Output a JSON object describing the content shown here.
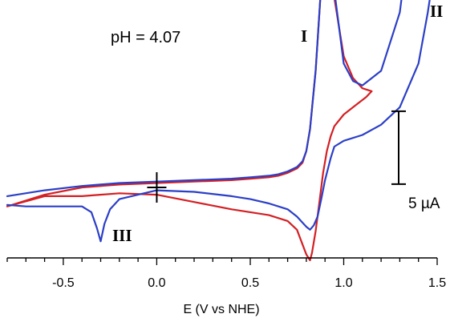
{
  "chart_data": {
    "type": "line",
    "title": "",
    "xlabel": "E (V vs NHE)",
    "ylabel": "",
    "xlim": [
      -0.8,
      1.5
    ],
    "x_ticks": [
      "-0.5",
      "0.0",
      "0.5",
      "1.0",
      "1.5"
    ],
    "x_tick_values": [
      -0.5,
      0.0,
      0.5,
      1.0,
      1.5
    ],
    "grid": false,
    "legend": "none",
    "annotations": {
      "ph": "pH = 4.07",
      "peak1": "I",
      "peak2": "II",
      "peak3": "III",
      "scale_bar": "5 µA",
      "scale_bar_value_uA": 5
    },
    "series": [
      {
        "color": "#d41f23",
        "x": [
          -0.8,
          -0.6,
          -0.4,
          -0.2,
          0.0,
          0.2,
          0.4,
          0.5,
          0.6,
          0.65,
          0.7,
          0.75,
          0.78,
          0.8,
          0.82,
          0.85,
          0.87,
          0.88,
          0.89,
          0.9,
          0.91,
          0.92,
          0.93,
          0.95,
          1.0,
          1.05,
          1.1,
          1.15,
          1.12,
          1.05,
          1.0,
          0.95,
          0.93,
          0.91,
          0.89,
          0.87,
          0.85,
          0.83,
          0.82,
          0.8,
          0.75,
          0.7,
          0.6,
          0.4,
          0.2,
          0.0,
          -0.2,
          -0.4,
          -0.6,
          -0.8
        ],
        "y": [
          -1.3,
          -0.5,
          0.0,
          0.2,
          0.3,
          0.4,
          0.5,
          0.6,
          0.7,
          0.8,
          1.0,
          1.3,
          1.7,
          2.5,
          4.0,
          8.0,
          12.0,
          14.0,
          15.5,
          17.0,
          17.6,
          17.7,
          17.0,
          13.0,
          9.0,
          7.5,
          6.8,
          6.6,
          6.2,
          5.5,
          5.0,
          4.2,
          3.5,
          2.5,
          1.0,
          -1.0,
          -3.0,
          -4.5,
          -5.0,
          -4.6,
          -2.9,
          -2.3,
          -1.9,
          -1.5,
          -1.0,
          -0.5,
          -0.4,
          -0.6,
          -0.6,
          -1.3
        ]
      },
      {
        "color": "#2b3fc7",
        "x": [
          -0.8,
          -0.6,
          -0.4,
          -0.2,
          0.0,
          0.2,
          0.4,
          0.5,
          0.6,
          0.65,
          0.7,
          0.75,
          0.78,
          0.8,
          0.82,
          0.85,
          0.87,
          0.88,
          0.89,
          0.9,
          0.91,
          0.92,
          0.93,
          0.95,
          1.0,
          1.05,
          1.1,
          1.2,
          1.3,
          1.35,
          1.38,
          1.42,
          1.45,
          1.5,
          1.45,
          1.4,
          1.3,
          1.2,
          1.1,
          1.0,
          0.95,
          0.93,
          0.9,
          0.88,
          0.86,
          0.84,
          0.82,
          0.8,
          0.75,
          0.7,
          0.6,
          0.5,
          0.4,
          0.2,
          0.0,
          -0.2,
          -0.25,
          -0.28,
          -0.3,
          -0.32,
          -0.35,
          -0.4,
          -0.5,
          -0.6,
          -0.7,
          -0.8
        ],
        "y": [
          -0.6,
          -0.2,
          0.1,
          0.3,
          0.4,
          0.5,
          0.6,
          0.7,
          0.8,
          0.9,
          1.1,
          1.4,
          1.8,
          2.5,
          4.0,
          8.0,
          12.0,
          14.0,
          15.5,
          16.8,
          17.4,
          17.6,
          17.2,
          13.5,
          8.5,
          7.3,
          7.0,
          8.0,
          12.0,
          17.0,
          19.5,
          20.0,
          18.5,
          16.3,
          12.0,
          8.5,
          5.5,
          4.3,
          3.6,
          3.2,
          2.8,
          2.0,
          0.5,
          -0.8,
          -2.0,
          -2.6,
          -2.9,
          -2.7,
          -2.0,
          -1.5,
          -1.1,
          -0.8,
          -0.6,
          -0.3,
          -0.2,
          -0.8,
          -1.5,
          -2.5,
          -3.7,
          -2.8,
          -1.7,
          -1.3,
          -1.3,
          -1.3,
          -1.3,
          -1.2
        ]
      }
    ]
  }
}
